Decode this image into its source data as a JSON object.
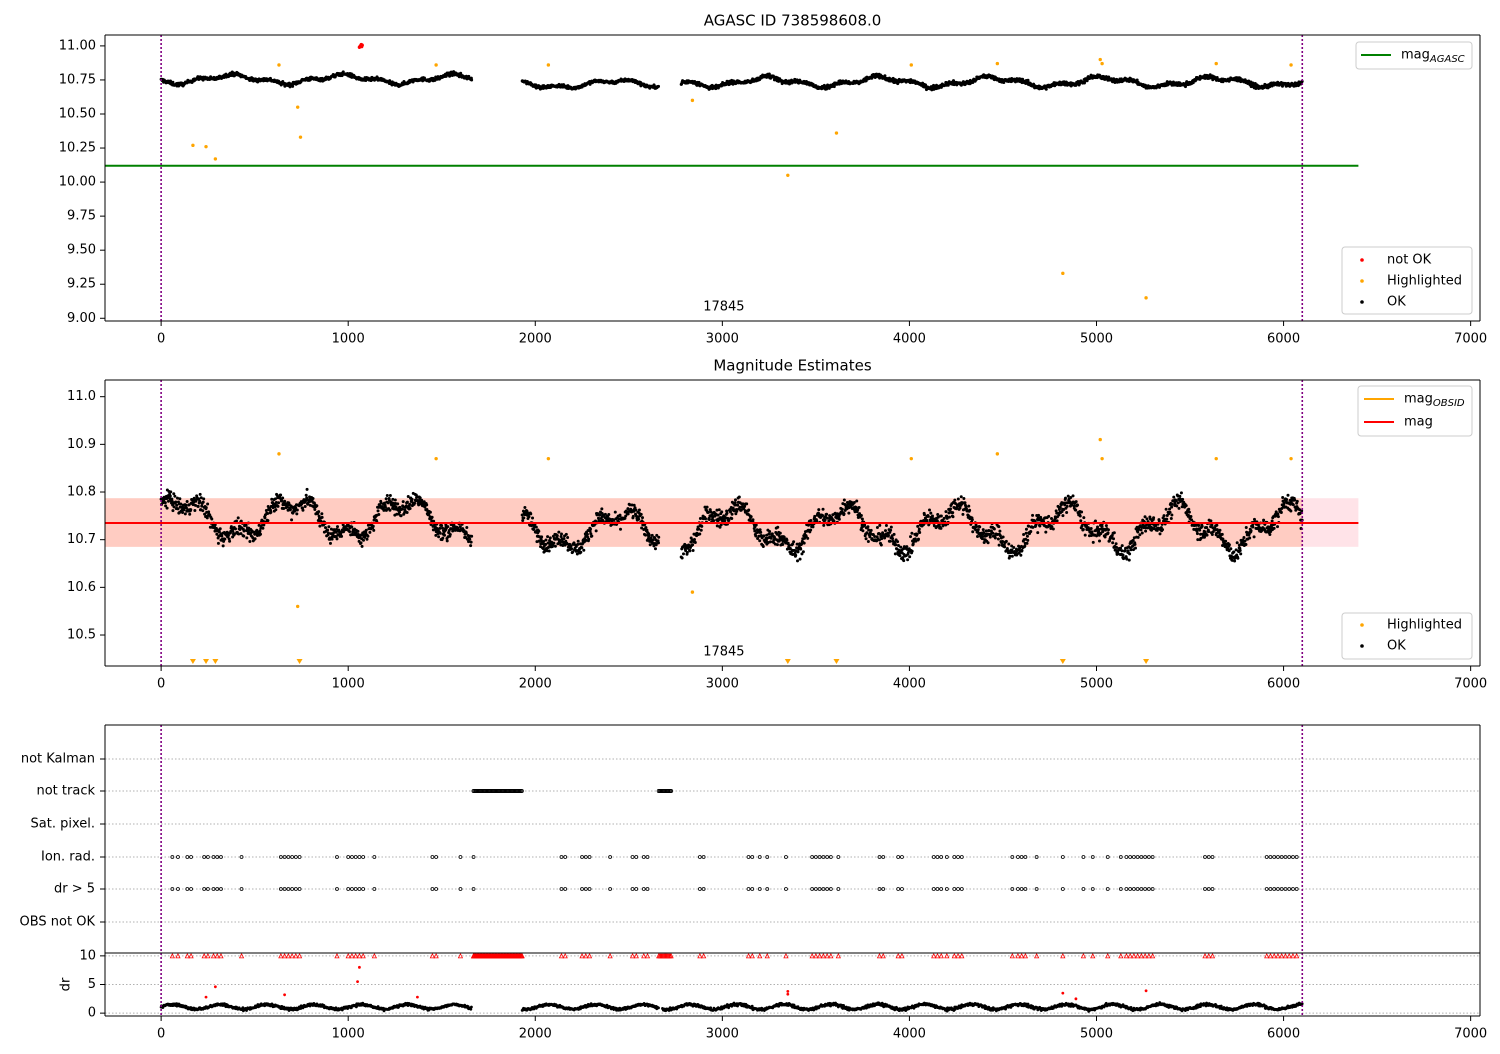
{
  "chart_data": [
    {
      "type": "scatter",
      "title": "AGASC ID 738598608.0",
      "xlim": [
        -300,
        7050
      ],
      "ylim": [
        8.98,
        11.08
      ],
      "xticks": [
        0,
        1000,
        2000,
        3000,
        4000,
        5000,
        6000,
        7000
      ],
      "yticks": [
        9.0,
        9.25,
        9.5,
        9.75,
        10.0,
        10.25,
        10.5,
        10.75,
        11.0
      ],
      "ytick_labels": [
        "9.00",
        "9.25",
        "9.50",
        "9.75",
        "10.00",
        "10.25",
        "10.50",
        "10.75",
        "11.00"
      ],
      "obs_marker_label": "17845",
      "obs_marker_x": 3035,
      "vlines_x": [
        0,
        6100
      ],
      "mag_agasc": {
        "name": "mag_AGASC",
        "value": 10.12,
        "x_range": [
          -300,
          6400
        ],
        "color": "#008000"
      },
      "legend_line": {
        "label": "mag",
        "sub": "AGASC"
      },
      "legend_points": [
        "not OK",
        "Highlighted",
        "OK"
      ],
      "series": [
        {
          "name": "OK",
          "color": "#000000",
          "segments": [
            {
              "x_start": 0,
              "x_end": 1660,
              "mean": 10.755,
              "amp": 0.05
            },
            {
              "x_start": 1930,
              "x_end": 2660,
              "mean": 10.72,
              "amp": 0.045
            },
            {
              "x_start": 2780,
              "x_end": 6100,
              "mean": 10.735,
              "amp": 0.055
            }
          ]
        },
        {
          "name": "not OK",
          "color": "#ff0000",
          "x": [
            1060,
            1065,
            1070,
            1072,
            1075
          ],
          "y": [
            10.99,
            11.0,
            11.01,
            10.995,
            11.005
          ]
        },
        {
          "name": "Highlighted",
          "color": "#ffa500",
          "x": [
            170,
            240,
            290,
            630,
            730,
            745,
            1470,
            2070,
            2840,
            3350,
            3610,
            4010,
            4470,
            4820,
            5020,
            5030,
            5265,
            5640,
            6040
          ],
          "y": [
            10.27,
            10.26,
            10.17,
            10.86,
            10.55,
            10.33,
            10.86,
            10.86,
            10.6,
            10.05,
            10.36,
            10.86,
            10.87,
            9.33,
            10.9,
            10.87,
            9.15,
            10.87,
            10.86
          ]
        }
      ]
    },
    {
      "type": "scatter",
      "title": "Magnitude Estimates",
      "xlim": [
        -300,
        7050
      ],
      "ylim": [
        10.435,
        11.035
      ],
      "xticks": [
        0,
        1000,
        2000,
        3000,
        4000,
        5000,
        6000,
        7000
      ],
      "yticks": [
        10.5,
        10.6,
        10.7,
        10.8,
        10.9,
        11.0
      ],
      "ytick_labels": [
        "10.5",
        "10.6",
        "10.7",
        "10.8",
        "10.9",
        "11.0"
      ],
      "obs_marker_label": "17845",
      "obs_marker_x": 3035,
      "vlines_x": [
        0,
        6100
      ],
      "mag": {
        "value": 10.735,
        "band": [
          10.685,
          10.787
        ],
        "x_range": [
          -300,
          6400
        ],
        "color": "#ff0000"
      },
      "mag_obsid_color": "#ffa500",
      "legend_lines": [
        {
          "label": "mag",
          "sub": "OBSID"
        },
        {
          "label": "mag",
          "sub": ""
        }
      ],
      "legend_points": [
        "Highlighted",
        "OK"
      ],
      "highlight_down_arrows_x": [
        170,
        240,
        290,
        740,
        3350,
        3610,
        4820,
        5265
      ],
      "series": [
        {
          "name": "OK",
          "color": "#000000",
          "segments": [
            {
              "x_start": 0,
              "x_end": 1660,
              "mean": 10.745,
              "amp": 0.065
            },
            {
              "x_start": 1930,
              "x_end": 2660,
              "mean": 10.72,
              "amp": 0.06
            },
            {
              "x_start": 2780,
              "x_end": 6100,
              "mean": 10.725,
              "amp": 0.07
            }
          ]
        },
        {
          "name": "Highlighted",
          "color": "#ffa500",
          "x": [
            630,
            730,
            1470,
            2070,
            2840,
            4010,
            4470,
            5020,
            5030,
            5640,
            6040
          ],
          "y": [
            10.88,
            10.56,
            10.87,
            10.87,
            10.59,
            10.87,
            10.88,
            10.91,
            10.87,
            10.87,
            10.87
          ]
        }
      ]
    },
    {
      "type": "scatter",
      "xlim": [
        -300,
        7050
      ],
      "category_labels": [
        "not Kalman",
        "not track",
        "Sat. pixel.",
        "Ion. rad.",
        "dr > 5",
        "OBS not OK"
      ],
      "vlines_x": [
        0,
        6100
      ],
      "not_track_ranges": [
        [
          1670,
          1930
        ],
        [
          2660,
          2730
        ]
      ],
      "flag_x": [
        60,
        90,
        140,
        160,
        230,
        250,
        280,
        300,
        320,
        430,
        640,
        660,
        680,
        700,
        720,
        740,
        940,
        1000,
        1020,
        1040,
        1060,
        1080,
        1140,
        1450,
        1470,
        1600,
        1670,
        2140,
        2160,
        2250,
        2270,
        2290,
        2400,
        2520,
        2540,
        2580,
        2600,
        2880,
        2900,
        3140,
        3160,
        3200,
        3240,
        3340,
        3480,
        3500,
        3520,
        3540,
        3560,
        3580,
        3620,
        3840,
        3860,
        3940,
        3960,
        4130,
        4150,
        4170,
        4200,
        4240,
        4260,
        4280,
        4550,
        4580,
        4600,
        4620,
        4680,
        4820,
        4930,
        4980,
        5060,
        5130,
        5160,
        5180,
        5200,
        5220,
        5240,
        5260,
        5280,
        5300,
        5580,
        5600,
        5620,
        5910,
        5930,
        5950,
        5970,
        5990,
        6010,
        6030,
        6050,
        6070
      ]
    },
    {
      "type": "scatter",
      "ylabel": "dr",
      "xlim": [
        -300,
        7050
      ],
      "ylim": [
        -0.5,
        10.5
      ],
      "xticks": [
        0,
        1000,
        2000,
        3000,
        4000,
        5000,
        6000,
        7000
      ],
      "yticks": [
        0,
        5,
        10
      ],
      "vlines_x": [
        0,
        6100
      ],
      "series": [
        {
          "name": "dr",
          "color": "#000000",
          "segments": [
            {
              "x_start": 0,
              "x_end": 1660,
              "mean": 1.1,
              "amp": 0.8
            },
            {
              "x_start": 1930,
              "x_end": 2660,
              "mean": 1.1,
              "amp": 0.8
            },
            {
              "x_start": 2680,
              "x_end": 6100,
              "mean": 1.1,
              "amp": 0.9
            }
          ]
        },
        {
          "name": "dr > 5 (clipped)",
          "color": "#ff0000",
          "x_ranges": [
            [
              1670,
              1930
            ]
          ],
          "y": 10
        },
        {
          "name": "outliers",
          "color": "#ff0000",
          "x": [
            240,
            290,
            660,
            1050,
            1060,
            1370,
            3350,
            3350,
            4820,
            4890,
            5265
          ],
          "y": [
            2.8,
            4.6,
            3.2,
            5.5,
            8.0,
            2.8,
            3.8,
            3.3,
            3.5,
            2.5,
            3.9
          ]
        }
      ]
    }
  ]
}
